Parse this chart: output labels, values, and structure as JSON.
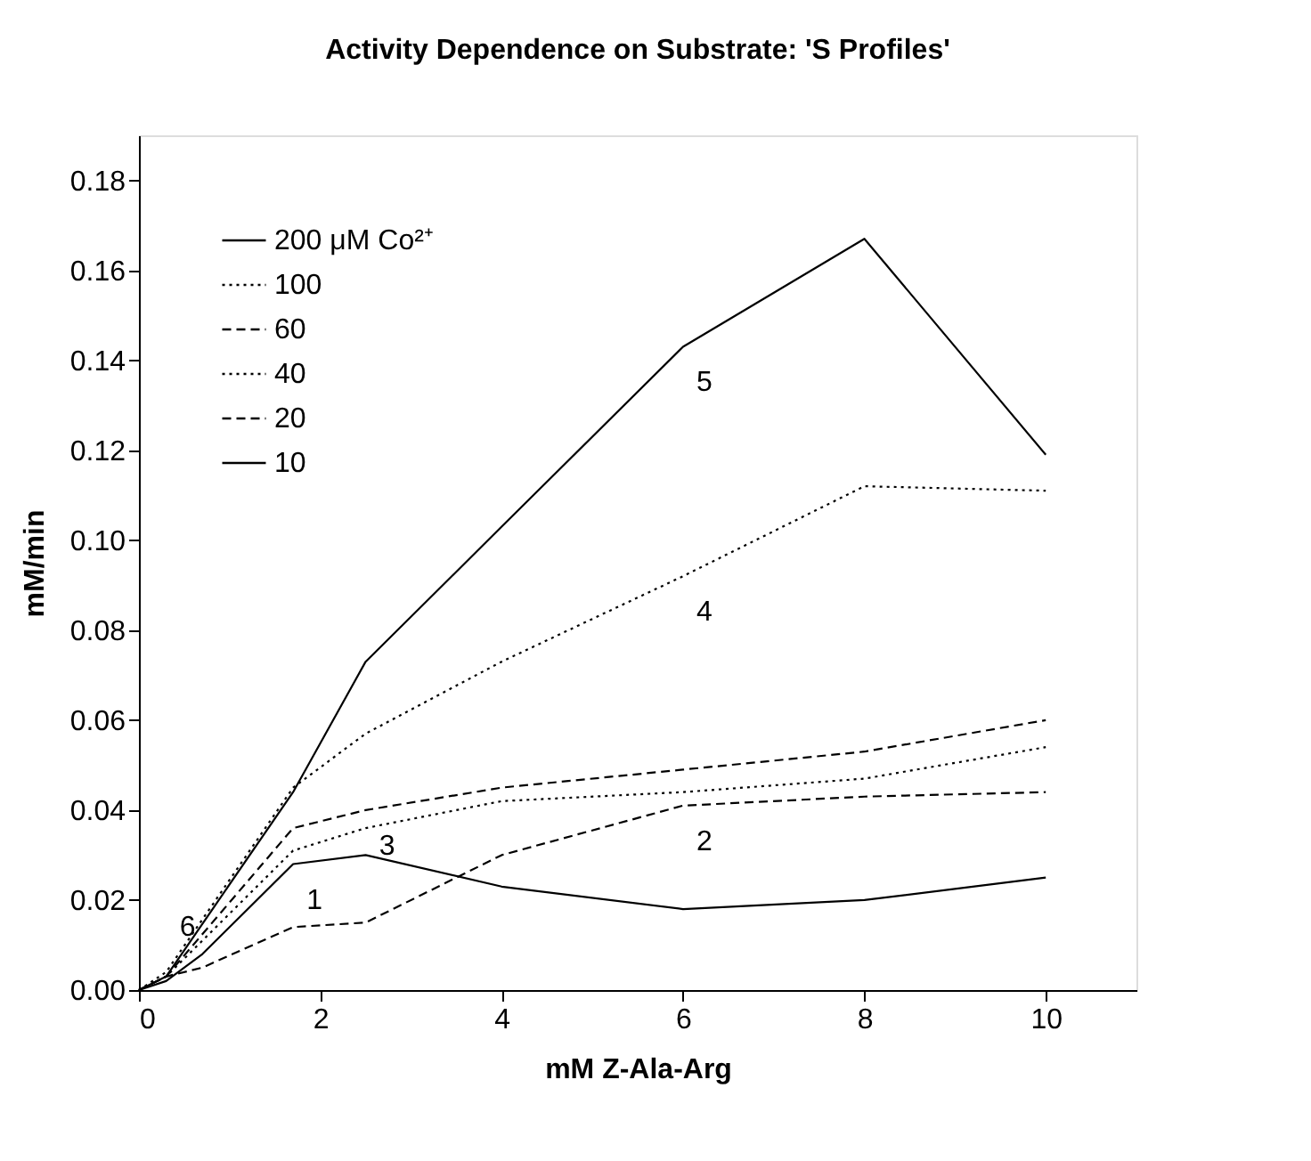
{
  "chart_data": {
    "type": "line",
    "title": "Activity Dependence on Substrate: 'S Profiles'",
    "xlabel": "mM Z-Ala-Arg",
    "ylabel": "mM/min",
    "series": [
      {
        "name": "200 μM Co²⁺",
        "color": "#000000",
        "line_style": "solid",
        "x": [
          0,
          0.3,
          1.7,
          2.5,
          4,
          6,
          8,
          10
        ],
        "values": [
          0,
          0.003,
          0.044,
          0.073,
          0.103,
          0.143,
          0.167,
          0.119
        ]
      },
      {
        "name": "100",
        "color": "#000000",
        "line_style": "dotted",
        "x": [
          0,
          0.3,
          1.7,
          2.5,
          4,
          6,
          8,
          10
        ],
        "values": [
          0,
          0.004,
          0.045,
          0.057,
          0.073,
          0.092,
          0.112,
          0.111
        ]
      },
      {
        "name": "60",
        "color": "#000000",
        "line_style": "dashed",
        "x": [
          0,
          0.3,
          1.7,
          2.5,
          4,
          6,
          8,
          10
        ],
        "values": [
          0,
          0.003,
          0.036,
          0.04,
          0.045,
          0.049,
          0.053,
          0.06
        ]
      },
      {
        "name": "40",
        "color": "#000000",
        "line_style": "dotted",
        "x": [
          0,
          0.3,
          1.7,
          2.5,
          4,
          6,
          8,
          10
        ],
        "values": [
          0,
          0.003,
          0.031,
          0.036,
          0.042,
          0.044,
          0.047,
          0.054
        ]
      },
      {
        "name": "20",
        "color": "#000000",
        "line_style": "dashed",
        "x": [
          0,
          0.3,
          0.7,
          1.7,
          2.5,
          4,
          6,
          8,
          10
        ],
        "values": [
          0,
          0.003,
          0.005,
          0.014,
          0.015,
          0.03,
          0.041,
          0.043,
          0.044
        ]
      },
      {
        "name": "10",
        "color": "#000000",
        "line_style": "solid",
        "x": [
          0,
          0.3,
          0.7,
          1.7,
          2.5,
          4,
          6,
          8,
          10
        ],
        "values": [
          0,
          0.002,
          0.008,
          0.028,
          0.03,
          0.023,
          0.018,
          0.02,
          0.025
        ]
      }
    ],
    "annotations": [
      {
        "text": "1",
        "x": 1.7,
        "y": 0.028
      },
      {
        "text": "2",
        "x": 6,
        "y": 0.041
      },
      {
        "text": "3",
        "x": 2.5,
        "y": 0.04
      },
      {
        "text": "4",
        "x": 6,
        "y": 0.092
      },
      {
        "text": "5",
        "x": 6,
        "y": 0.143
      },
      {
        "text": "6",
        "x": 0.3,
        "y": 0.003
      }
    ],
    "xlim": [
      0,
      11
    ],
    "xticks": [
      0,
      2,
      4,
      6,
      8,
      10
    ],
    "ylim": [
      0,
      0.19
    ],
    "yticks": [
      {
        "value": 0,
        "label": "0.00"
      },
      {
        "value": 0.02,
        "label": "0.02"
      },
      {
        "value": 0.04,
        "label": "0.04"
      },
      {
        "value": 0.06,
        "label": "0.06"
      },
      {
        "value": 0.08,
        "label": "0.08"
      },
      {
        "value": 0.1,
        "label": "0.10"
      },
      {
        "value": 0.12,
        "label": "0.12"
      },
      {
        "value": 0.14,
        "label": "0.14"
      },
      {
        "value": 0.16,
        "label": "0.16"
      },
      {
        "value": 0.18,
        "label": "0.18"
      }
    ],
    "grid": false,
    "legend": "top left",
    "marker": "none"
  }
}
